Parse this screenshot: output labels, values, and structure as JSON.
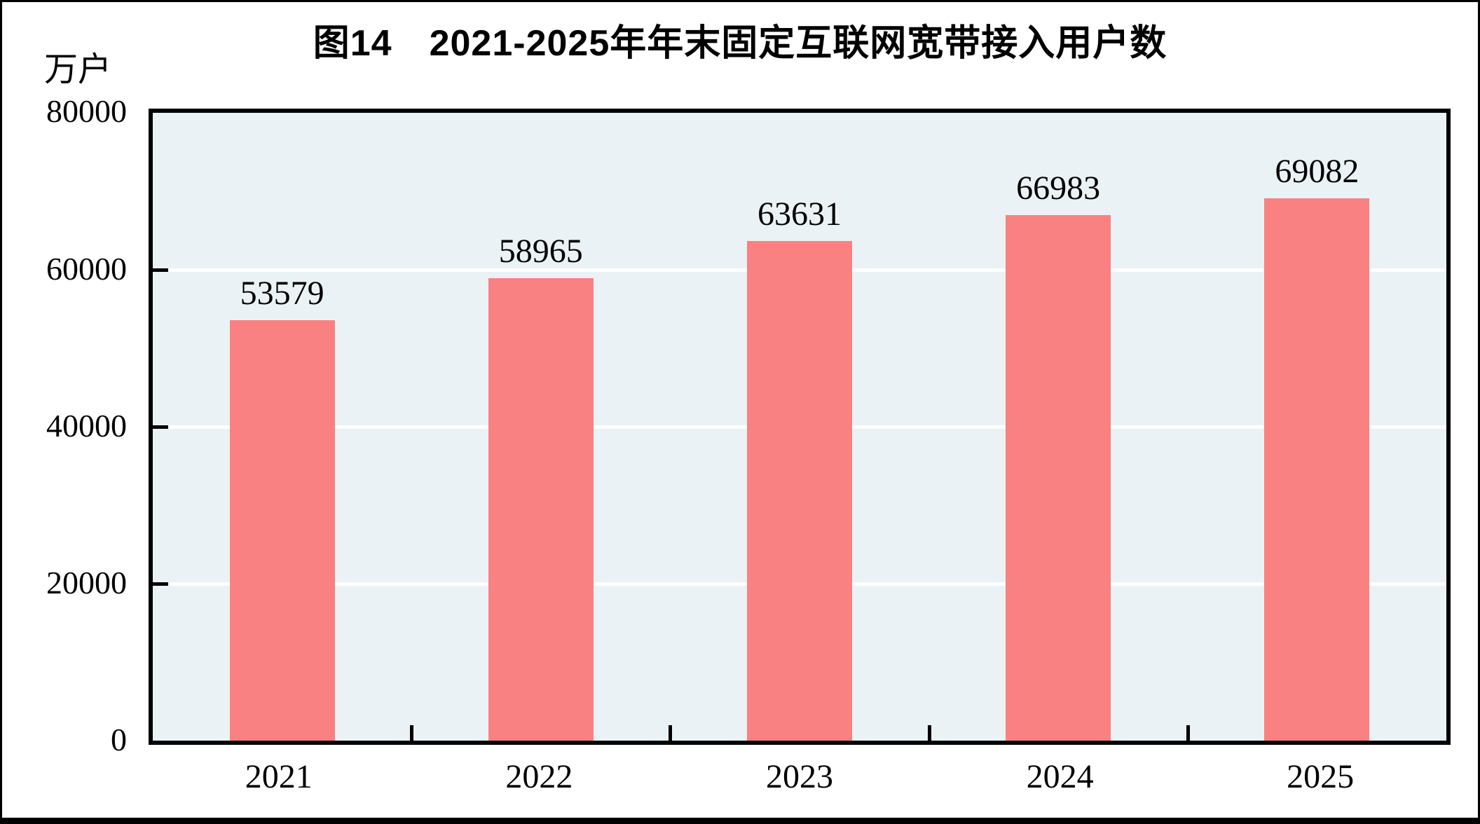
{
  "figure": {
    "title": "图14　2021-2025年年末固定互联网宽带接入用户数",
    "unit_label": "万户"
  },
  "chart_data": {
    "type": "bar",
    "title": "图14　2021-2025年年末固定互联网宽带接入用户数",
    "categories": [
      "2021",
      "2022",
      "2023",
      "2024",
      "2025"
    ],
    "values": [
      53579,
      58965,
      63631,
      66983,
      69082
    ],
    "data_labels": [
      "53579",
      "58965",
      "63631",
      "66983",
      "69082"
    ],
    "xlabel": "",
    "ylabel": "万户",
    "ylim": [
      0,
      80000
    ],
    "yticks": [
      0,
      20000,
      40000,
      60000,
      80000
    ],
    "ytick_labels_top_to_bottom": [
      "80000",
      "60000",
      "40000",
      "20000",
      "0"
    ],
    "grid": "horizontal white gridlines at 20000/40000/60000",
    "legend_position": "none",
    "colors": {
      "bar": "#f98181",
      "plot_background": "#ebf2f5",
      "gridline": "#ffffff",
      "axis_frame": "#000000",
      "text": "#000000"
    }
  }
}
